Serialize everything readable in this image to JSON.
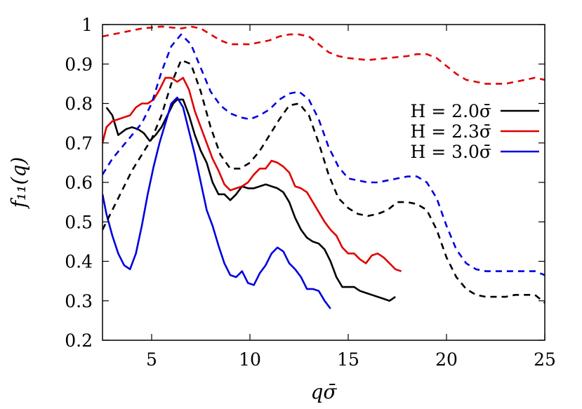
{
  "chart_data": {
    "type": "line",
    "xlabel": "qσ̄",
    "ylabel": "f₁₁(q)",
    "xlim": [
      2.5,
      25
    ],
    "ylim": [
      0.2,
      1.0
    ],
    "x_ticks": [
      5,
      10,
      15,
      20,
      25
    ],
    "y_ticks": [
      0.2,
      0.3,
      0.4,
      0.5,
      0.6,
      0.7,
      0.8,
      0.9,
      1.0
    ],
    "x_tick_labels": [
      "5",
      "10",
      "15",
      "20",
      "25"
    ],
    "y_tick_labels": [
      "0.2",
      "0.3",
      "0.4",
      "0.5",
      "0.6",
      "0.7",
      "0.8",
      "0.9",
      "1"
    ],
    "grid": false,
    "legend_position": "right",
    "series": [
      {
        "name": "H = 2.0σ̄",
        "color": "#000000",
        "style": "solid",
        "points": [
          [
            2.7,
            0.79
          ],
          [
            3.0,
            0.77
          ],
          [
            3.3,
            0.72
          ],
          [
            3.7,
            0.735
          ],
          [
            4.0,
            0.74
          ],
          [
            4.3,
            0.735
          ],
          [
            4.6,
            0.725
          ],
          [
            4.9,
            0.705
          ],
          [
            5.2,
            0.72
          ],
          [
            5.5,
            0.74
          ],
          [
            5.8,
            0.77
          ],
          [
            6.1,
            0.8
          ],
          [
            6.3,
            0.81
          ],
          [
            6.6,
            0.81
          ],
          [
            6.9,
            0.77
          ],
          [
            7.2,
            0.72
          ],
          [
            7.5,
            0.68
          ],
          [
            7.8,
            0.65
          ],
          [
            8.1,
            0.6
          ],
          [
            8.4,
            0.57
          ],
          [
            8.7,
            0.57
          ],
          [
            9.0,
            0.555
          ],
          [
            9.3,
            0.57
          ],
          [
            9.6,
            0.59
          ],
          [
            9.9,
            0.585
          ],
          [
            10.2,
            0.585
          ],
          [
            10.5,
            0.59
          ],
          [
            10.8,
            0.595
          ],
          [
            11.1,
            0.59
          ],
          [
            11.4,
            0.585
          ],
          [
            11.7,
            0.575
          ],
          [
            12.0,
            0.55
          ],
          [
            12.3,
            0.51
          ],
          [
            12.6,
            0.48
          ],
          [
            12.9,
            0.46
          ],
          [
            13.2,
            0.45
          ],
          [
            13.5,
            0.445
          ],
          [
            13.8,
            0.43
          ],
          [
            14.1,
            0.4
          ],
          [
            14.4,
            0.36
          ],
          [
            14.7,
            0.335
          ],
          [
            15.0,
            0.335
          ],
          [
            15.3,
            0.335
          ],
          [
            15.6,
            0.325
          ],
          [
            15.9,
            0.32
          ],
          [
            16.2,
            0.315
          ],
          [
            16.5,
            0.31
          ],
          [
            16.8,
            0.305
          ],
          [
            17.1,
            0.3
          ],
          [
            17.4,
            0.31
          ]
        ]
      },
      {
        "name": "H = 2.3σ̄",
        "color": "#e00000",
        "style": "solid",
        "points": [
          [
            2.5,
            0.7
          ],
          [
            2.7,
            0.74
          ],
          [
            3.0,
            0.755
          ],
          [
            3.3,
            0.76
          ],
          [
            3.6,
            0.765
          ],
          [
            3.9,
            0.77
          ],
          [
            4.2,
            0.79
          ],
          [
            4.5,
            0.8
          ],
          [
            4.8,
            0.8
          ],
          [
            5.1,
            0.81
          ],
          [
            5.4,
            0.835
          ],
          [
            5.7,
            0.865
          ],
          [
            6.0,
            0.865
          ],
          [
            6.3,
            0.855
          ],
          [
            6.6,
            0.865
          ],
          [
            6.9,
            0.835
          ],
          [
            7.2,
            0.78
          ],
          [
            7.5,
            0.74
          ],
          [
            7.8,
            0.7
          ],
          [
            8.1,
            0.66
          ],
          [
            8.4,
            0.63
          ],
          [
            8.7,
            0.595
          ],
          [
            9.0,
            0.58
          ],
          [
            9.3,
            0.585
          ],
          [
            9.6,
            0.59
          ],
          [
            9.9,
            0.6
          ],
          [
            10.2,
            0.62
          ],
          [
            10.5,
            0.635
          ],
          [
            10.8,
            0.635
          ],
          [
            11.1,
            0.655
          ],
          [
            11.4,
            0.65
          ],
          [
            11.7,
            0.64
          ],
          [
            12.0,
            0.625
          ],
          [
            12.3,
            0.59
          ],
          [
            12.6,
            0.585
          ],
          [
            12.9,
            0.575
          ],
          [
            13.2,
            0.55
          ],
          [
            13.5,
            0.525
          ],
          [
            13.8,
            0.5
          ],
          [
            14.1,
            0.48
          ],
          [
            14.4,
            0.465
          ],
          [
            14.7,
            0.435
          ],
          [
            15.0,
            0.42
          ],
          [
            15.3,
            0.42
          ],
          [
            15.6,
            0.405
          ],
          [
            15.9,
            0.395
          ],
          [
            16.2,
            0.415
          ],
          [
            16.5,
            0.42
          ],
          [
            16.8,
            0.41
          ],
          [
            17.1,
            0.395
          ],
          [
            17.4,
            0.38
          ],
          [
            17.7,
            0.375
          ]
        ]
      },
      {
        "name": "H = 3.0σ̄",
        "color": "#0000e0",
        "style": "solid",
        "points": [
          [
            2.5,
            0.57
          ],
          [
            2.7,
            0.52
          ],
          [
            3.0,
            0.465
          ],
          [
            3.3,
            0.42
          ],
          [
            3.6,
            0.39
          ],
          [
            3.9,
            0.38
          ],
          [
            4.2,
            0.42
          ],
          [
            4.5,
            0.49
          ],
          [
            4.8,
            0.57
          ],
          [
            5.1,
            0.64
          ],
          [
            5.4,
            0.7
          ],
          [
            5.7,
            0.75
          ],
          [
            6.0,
            0.8
          ],
          [
            6.3,
            0.815
          ],
          [
            6.6,
            0.79
          ],
          [
            6.9,
            0.73
          ],
          [
            7.2,
            0.67
          ],
          [
            7.5,
            0.6
          ],
          [
            7.8,
            0.53
          ],
          [
            8.1,
            0.49
          ],
          [
            8.4,
            0.44
          ],
          [
            8.7,
            0.395
          ],
          [
            9.0,
            0.365
          ],
          [
            9.3,
            0.36
          ],
          [
            9.6,
            0.375
          ],
          [
            9.9,
            0.345
          ],
          [
            10.2,
            0.34
          ],
          [
            10.5,
            0.37
          ],
          [
            10.8,
            0.39
          ],
          [
            11.1,
            0.42
          ],
          [
            11.4,
            0.435
          ],
          [
            11.7,
            0.425
          ],
          [
            12.0,
            0.395
          ],
          [
            12.3,
            0.38
          ],
          [
            12.6,
            0.36
          ],
          [
            12.9,
            0.33
          ],
          [
            13.2,
            0.33
          ],
          [
            13.5,
            0.325
          ],
          [
            13.8,
            0.3
          ],
          [
            14.1,
            0.28
          ]
        ]
      },
      {
        "name": "",
        "color": "#000000",
        "style": "dashed",
        "points": [
          [
            2.5,
            0.48
          ],
          [
            3.0,
            0.53
          ],
          [
            3.5,
            0.58
          ],
          [
            4.0,
            0.63
          ],
          [
            4.5,
            0.67
          ],
          [
            5.0,
            0.71
          ],
          [
            5.5,
            0.77
          ],
          [
            6.0,
            0.85
          ],
          [
            6.5,
            0.91
          ],
          [
            7.0,
            0.9
          ],
          [
            7.5,
            0.83
          ],
          [
            8.0,
            0.74
          ],
          [
            8.5,
            0.67
          ],
          [
            9.0,
            0.635
          ],
          [
            9.5,
            0.635
          ],
          [
            10.0,
            0.65
          ],
          [
            10.5,
            0.68
          ],
          [
            11.0,
            0.72
          ],
          [
            11.5,
            0.76
          ],
          [
            12.0,
            0.795
          ],
          [
            12.5,
            0.8
          ],
          [
            13.0,
            0.77
          ],
          [
            13.5,
            0.7
          ],
          [
            14.0,
            0.62
          ],
          [
            14.5,
            0.56
          ],
          [
            15.0,
            0.535
          ],
          [
            15.5,
            0.52
          ],
          [
            16.0,
            0.515
          ],
          [
            16.5,
            0.52
          ],
          [
            17.0,
            0.53
          ],
          [
            17.5,
            0.55
          ],
          [
            18.0,
            0.55
          ],
          [
            18.5,
            0.545
          ],
          [
            19.0,
            0.53
          ],
          [
            19.5,
            0.48
          ],
          [
            20.0,
            0.41
          ],
          [
            20.5,
            0.36
          ],
          [
            21.0,
            0.33
          ],
          [
            21.5,
            0.315
          ],
          [
            22.0,
            0.31
          ],
          [
            22.5,
            0.31
          ],
          [
            23.0,
            0.31
          ],
          [
            23.5,
            0.315
          ],
          [
            24.0,
            0.315
          ],
          [
            24.5,
            0.315
          ],
          [
            25.0,
            0.295
          ]
        ]
      },
      {
        "name": "",
        "color": "#e00000",
        "style": "dashed",
        "points": [
          [
            2.5,
            0.97
          ],
          [
            3.5,
            0.98
          ],
          [
            4.5,
            0.99
          ],
          [
            5.5,
            0.995
          ],
          [
            6.5,
            0.99
          ],
          [
            7.0,
            0.995
          ],
          [
            7.5,
            0.99
          ],
          [
            8.0,
            0.975
          ],
          [
            8.5,
            0.96
          ],
          [
            9.0,
            0.95
          ],
          [
            10.0,
            0.95
          ],
          [
            11.0,
            0.96
          ],
          [
            11.5,
            0.97
          ],
          [
            12.0,
            0.975
          ],
          [
            12.5,
            0.975
          ],
          [
            13.0,
            0.97
          ],
          [
            13.5,
            0.95
          ],
          [
            14.0,
            0.93
          ],
          [
            14.5,
            0.92
          ],
          [
            15.0,
            0.915
          ],
          [
            16.0,
            0.91
          ],
          [
            17.0,
            0.915
          ],
          [
            18.0,
            0.92
          ],
          [
            18.5,
            0.925
          ],
          [
            19.0,
            0.925
          ],
          [
            19.5,
            0.915
          ],
          [
            20.0,
            0.895
          ],
          [
            20.5,
            0.875
          ],
          [
            21.0,
            0.86
          ],
          [
            21.5,
            0.855
          ],
          [
            22.0,
            0.85
          ],
          [
            22.5,
            0.85
          ],
          [
            23.0,
            0.85
          ],
          [
            23.5,
            0.855
          ],
          [
            24.0,
            0.86
          ],
          [
            24.5,
            0.865
          ],
          [
            25.0,
            0.86
          ]
        ]
      },
      {
        "name": "",
        "color": "#0000e0",
        "style": "dashed",
        "points": [
          [
            2.5,
            0.62
          ],
          [
            3.0,
            0.66
          ],
          [
            3.5,
            0.69
          ],
          [
            4.0,
            0.72
          ],
          [
            4.5,
            0.75
          ],
          [
            5.0,
            0.8
          ],
          [
            5.5,
            0.88
          ],
          [
            6.0,
            0.945
          ],
          [
            6.5,
            0.975
          ],
          [
            7.0,
            0.95
          ],
          [
            7.5,
            0.89
          ],
          [
            8.0,
            0.83
          ],
          [
            8.5,
            0.795
          ],
          [
            9.0,
            0.775
          ],
          [
            9.5,
            0.765
          ],
          [
            10.0,
            0.76
          ],
          [
            10.5,
            0.77
          ],
          [
            11.0,
            0.785
          ],
          [
            11.5,
            0.81
          ],
          [
            12.0,
            0.825
          ],
          [
            12.5,
            0.83
          ],
          [
            13.0,
            0.81
          ],
          [
            13.5,
            0.76
          ],
          [
            14.0,
            0.69
          ],
          [
            14.5,
            0.64
          ],
          [
            15.0,
            0.61
          ],
          [
            15.5,
            0.605
          ],
          [
            16.0,
            0.6
          ],
          [
            16.5,
            0.6
          ],
          [
            17.0,
            0.605
          ],
          [
            17.5,
            0.61
          ],
          [
            18.0,
            0.615
          ],
          [
            18.5,
            0.615
          ],
          [
            19.0,
            0.6
          ],
          [
            19.5,
            0.56
          ],
          [
            20.0,
            0.49
          ],
          [
            20.5,
            0.43
          ],
          [
            21.0,
            0.395
          ],
          [
            21.5,
            0.38
          ],
          [
            22.0,
            0.375
          ],
          [
            22.5,
            0.375
          ],
          [
            23.0,
            0.375
          ],
          [
            23.5,
            0.375
          ],
          [
            24.0,
            0.375
          ],
          [
            24.5,
            0.375
          ],
          [
            25.0,
            0.365
          ]
        ]
      }
    ]
  }
}
